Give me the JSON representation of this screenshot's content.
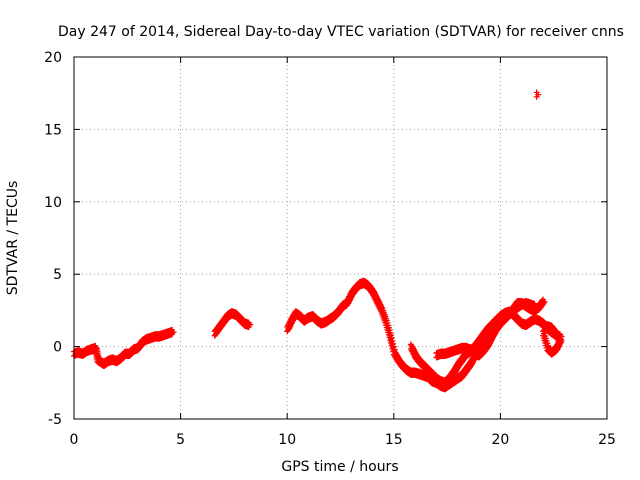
{
  "chart_data": {
    "type": "scatter",
    "title": "Day 247 of 2014, Sidereal Day-to-day VTEC variation (SDTVAR) for receiver cnns",
    "xlabel": "GPS time / hours",
    "ylabel": "SDTVAR / TECUs",
    "xlim": [
      0,
      25
    ],
    "ylim": [
      -5,
      20
    ],
    "xticks": [
      0,
      5,
      10,
      15,
      20,
      25
    ],
    "yticks": [
      -5,
      0,
      5,
      10,
      15,
      20
    ],
    "xtick_labels": [
      "0",
      "5",
      "10",
      "15",
      "20",
      "25"
    ],
    "ytick_labels": [
      "-5",
      "0",
      "5",
      "10",
      "15",
      "20"
    ],
    "grid": true,
    "marker": "+",
    "color": "#ff0000",
    "series": [
      {
        "name": "segment-1",
        "points": [
          [
            0.0,
            -0.5
          ],
          [
            0.2,
            -0.4
          ],
          [
            0.4,
            -0.5
          ],
          [
            0.6,
            -0.3
          ],
          [
            0.8,
            -0.2
          ],
          [
            1.0,
            -0.1
          ],
          [
            1.1,
            -0.9
          ],
          [
            1.2,
            -1.0
          ],
          [
            1.4,
            -1.2
          ],
          [
            1.6,
            -1.0
          ],
          [
            1.8,
            -0.9
          ],
          [
            2.0,
            -1.0
          ],
          [
            2.2,
            -0.8
          ],
          [
            2.4,
            -0.5
          ],
          [
            2.6,
            -0.5
          ],
          [
            2.8,
            -0.2
          ],
          [
            3.0,
            -0.1
          ],
          [
            3.2,
            0.3
          ],
          [
            3.4,
            0.5
          ],
          [
            3.6,
            0.6
          ],
          [
            3.8,
            0.7
          ],
          [
            4.0,
            0.7
          ],
          [
            4.2,
            0.8
          ],
          [
            4.4,
            0.9
          ],
          [
            4.6,
            1.0
          ]
        ]
      },
      {
        "name": "segment-2",
        "points": [
          [
            6.6,
            0.9
          ],
          [
            6.8,
            1.3
          ],
          [
            7.0,
            1.7
          ],
          [
            7.2,
            2.1
          ],
          [
            7.4,
            2.3
          ],
          [
            7.6,
            2.2
          ],
          [
            7.8,
            1.9
          ],
          [
            8.0,
            1.6
          ],
          [
            8.2,
            1.5
          ]
        ]
      },
      {
        "name": "segment-3",
        "points": [
          [
            10.0,
            1.2
          ],
          [
            10.2,
            1.8
          ],
          [
            10.4,
            2.3
          ],
          [
            10.6,
            2.1
          ],
          [
            10.8,
            1.8
          ],
          [
            11.0,
            2.0
          ],
          [
            11.2,
            2.1
          ],
          [
            11.4,
            1.8
          ],
          [
            11.6,
            1.6
          ],
          [
            11.8,
            1.7
          ],
          [
            12.0,
            1.9
          ],
          [
            12.2,
            2.1
          ],
          [
            12.4,
            2.4
          ],
          [
            12.6,
            2.8
          ],
          [
            12.8,
            3.0
          ],
          [
            13.0,
            3.6
          ],
          [
            13.2,
            4.0
          ],
          [
            13.4,
            4.3
          ],
          [
            13.6,
            4.4
          ],
          [
            13.8,
            4.2
          ],
          [
            14.0,
            3.8
          ],
          [
            14.2,
            3.2
          ],
          [
            14.4,
            2.6
          ],
          [
            14.6,
            1.8
          ],
          [
            14.8,
            0.8
          ],
          [
            15.0,
            -0.4
          ],
          [
            15.2,
            -0.9
          ],
          [
            15.4,
            -1.3
          ],
          [
            15.6,
            -1.6
          ],
          [
            15.8,
            -1.8
          ],
          [
            16.0,
            -1.8
          ],
          [
            16.2,
            -1.9
          ],
          [
            16.4,
            -2.0
          ],
          [
            16.6,
            -2.1
          ],
          [
            16.8,
            -2.4
          ],
          [
            17.0,
            -2.5
          ],
          [
            17.2,
            -2.7
          ],
          [
            17.4,
            -2.8
          ],
          [
            17.6,
            -2.6
          ],
          [
            17.8,
            -2.4
          ],
          [
            18.0,
            -2.2
          ],
          [
            18.2,
            -2.0
          ],
          [
            18.4,
            -1.6
          ],
          [
            18.6,
            -1.2
          ],
          [
            18.8,
            -0.6
          ],
          [
            19.0,
            -0.2
          ],
          [
            19.2,
            0.4
          ],
          [
            19.4,
            0.8
          ],
          [
            19.6,
            1.2
          ],
          [
            19.8,
            1.5
          ],
          [
            20.0,
            1.8
          ],
          [
            20.2,
            2.0
          ],
          [
            20.4,
            2.3
          ],
          [
            20.6,
            2.5
          ],
          [
            20.8,
            2.7
          ],
          [
            21.0,
            2.9
          ],
          [
            21.2,
            3.0
          ],
          [
            21.4,
            2.9
          ],
          [
            21.6,
            2.8
          ]
        ]
      },
      {
        "name": "segment-4",
        "points": [
          [
            15.8,
            0.0
          ],
          [
            16.0,
            -0.6
          ],
          [
            16.2,
            -1.0
          ],
          [
            16.4,
            -1.3
          ],
          [
            16.6,
            -1.6
          ],
          [
            16.8,
            -1.9
          ],
          [
            17.0,
            -2.2
          ],
          [
            17.2,
            -2.4
          ],
          [
            17.4,
            -2.5
          ],
          [
            17.6,
            -2.2
          ],
          [
            17.8,
            -1.8
          ],
          [
            18.0,
            -1.3
          ],
          [
            18.2,
            -0.9
          ],
          [
            18.4,
            -0.5
          ],
          [
            18.6,
            -0.3
          ],
          [
            18.8,
            0.0
          ],
          [
            19.0,
            0.4
          ],
          [
            19.2,
            0.8
          ],
          [
            19.4,
            1.2
          ],
          [
            19.6,
            1.5
          ],
          [
            19.8,
            1.8
          ],
          [
            20.0,
            2.1
          ],
          [
            20.2,
            2.3
          ],
          [
            20.4,
            2.4
          ],
          [
            20.6,
            2.2
          ],
          [
            20.8,
            1.9
          ],
          [
            21.0,
            1.6
          ],
          [
            21.2,
            1.5
          ],
          [
            21.4,
            1.7
          ],
          [
            21.6,
            1.9
          ],
          [
            21.8,
            1.8
          ],
          [
            22.0,
            1.6
          ],
          [
            22.2,
            1.3
          ],
          [
            22.4,
            1.0
          ],
          [
            22.6,
            0.8
          ],
          [
            22.8,
            0.7
          ]
        ]
      },
      {
        "name": "segment-5",
        "points": [
          [
            17.0,
            -0.6
          ],
          [
            17.2,
            -0.5
          ],
          [
            17.4,
            -0.5
          ],
          [
            17.6,
            -0.4
          ],
          [
            17.8,
            -0.3
          ],
          [
            18.0,
            -0.2
          ],
          [
            18.2,
            -0.1
          ],
          [
            18.4,
            -0.1
          ],
          [
            18.6,
            -0.2
          ],
          [
            18.8,
            -0.5
          ],
          [
            19.0,
            -0.6
          ],
          [
            19.2,
            -0.3
          ],
          [
            19.4,
            0.1
          ],
          [
            19.6,
            0.7
          ],
          [
            19.8,
            1.2
          ],
          [
            20.0,
            1.6
          ],
          [
            20.2,
            1.9
          ],
          [
            20.4,
            2.2
          ],
          [
            20.6,
            2.6
          ],
          [
            20.8,
            3.0
          ],
          [
            21.0,
            3.0
          ],
          [
            21.2,
            2.8
          ],
          [
            21.4,
            2.6
          ],
          [
            21.6,
            2.5
          ],
          [
            21.8,
            2.7
          ],
          [
            22.0,
            3.1
          ]
        ]
      },
      {
        "name": "segment-6",
        "points": [
          [
            22.0,
            1.2
          ],
          [
            22.2,
            1.4
          ],
          [
            22.4,
            1.3
          ],
          [
            22.6,
            0.9
          ],
          [
            22.8,
            0.4
          ],
          [
            22.6,
            -0.2
          ],
          [
            22.4,
            -0.4
          ],
          [
            22.2,
            -0.1
          ],
          [
            22.0,
            0.9
          ]
        ]
      },
      {
        "name": "outlier",
        "points": [
          [
            21.7,
            17.4
          ]
        ]
      }
    ]
  }
}
